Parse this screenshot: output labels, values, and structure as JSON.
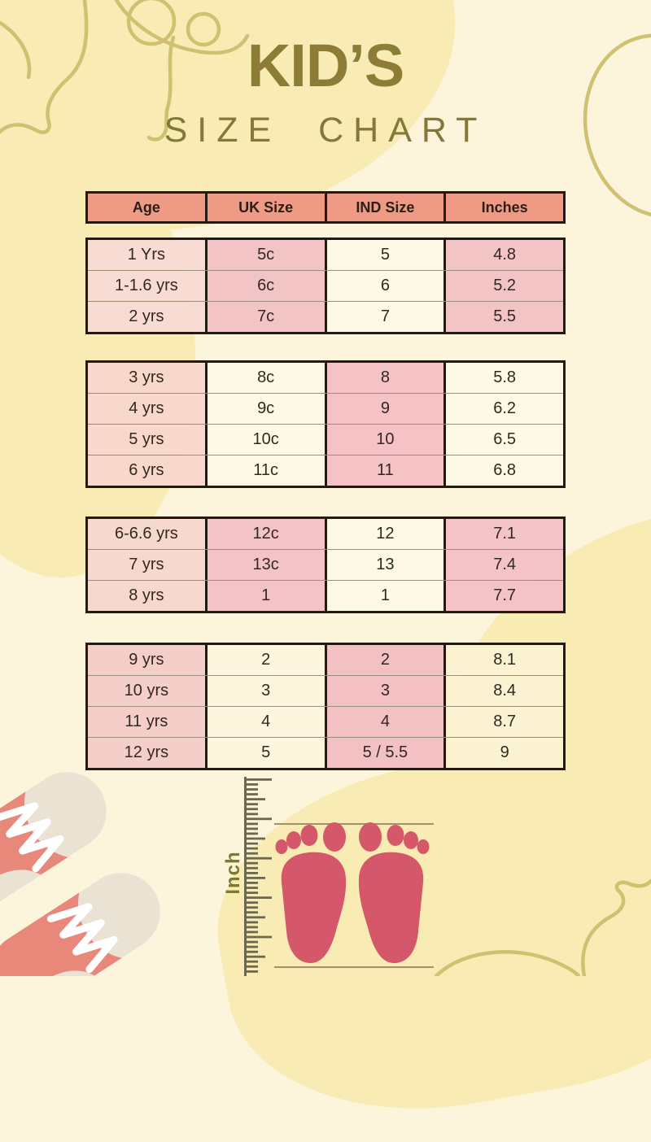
{
  "title": {
    "main": "KID’S",
    "sub": "SIZE CHART"
  },
  "table": {
    "headers": [
      "Age",
      "UK Size",
      "IND Size",
      "Inches"
    ],
    "groups": [
      {
        "rows": [
          [
            "1 Yrs",
            "5c",
            "5",
            "4.8"
          ],
          [
            "1-1.6 yrs",
            "6c",
            "6",
            "5.2"
          ],
          [
            "2 yrs",
            "7c",
            "7",
            "5.5"
          ]
        ]
      },
      {
        "rows": [
          [
            "3 yrs",
            "8c",
            "8",
            "5.8"
          ],
          [
            "4 yrs",
            "9c",
            "9",
            "6.2"
          ],
          [
            "5 yrs",
            "10c",
            "10",
            "6.5"
          ],
          [
            "6 yrs",
            "11c",
            "11",
            "6.8"
          ]
        ]
      },
      {
        "rows": [
          [
            "6-6.6 yrs",
            "12c",
            "12",
            "7.1"
          ],
          [
            "7 yrs",
            "13c",
            "13",
            "7.4"
          ],
          [
            "8 yrs",
            "1",
            "1",
            "7.7"
          ]
        ]
      },
      {
        "rows": [
          [
            "9 yrs",
            "2",
            "2",
            "8.1"
          ],
          [
            "10 yrs",
            "3",
            "3",
            "8.4"
          ],
          [
            "11 yrs",
            "4",
            "4",
            "8.7"
          ],
          [
            "12 yrs",
            "5",
            "5 / 5.5",
            "9"
          ]
        ]
      }
    ]
  },
  "ruler": {
    "label": "Inch"
  },
  "icons": {
    "ruler": "ruler-graphic",
    "footprints": "baby-footprints-graphic",
    "sneakers": "baby-sneakers-graphic"
  },
  "colors": {
    "background": "#fcf5dc",
    "blob_yellow": "#f8ecb4",
    "header_bg": "#ef9a85",
    "pink_cell": "#f3c4c6",
    "light_pink_cell": "#f8dcd4",
    "cream_cell": "#fdf9e6",
    "title_gold": "#8d7c35",
    "footprint_red": "#d4576a",
    "sneaker_salmon": "#e8887a",
    "sneaker_cream": "#eae3d3",
    "decor_gold": "#cfc072",
    "ruler_tick": "#6b684f"
  },
  "chart_data": {
    "type": "table",
    "title": "KID’S SIZE CHART",
    "columns": [
      "Age",
      "UK Size",
      "IND Size",
      "Inches"
    ],
    "rows": [
      [
        "1 Yrs",
        "5c",
        "5",
        "4.8"
      ],
      [
        "1-1.6 yrs",
        "6c",
        "6",
        "5.2"
      ],
      [
        "2 yrs",
        "7c",
        "7",
        "5.5"
      ],
      [
        "3 yrs",
        "8c",
        "8",
        "5.8"
      ],
      [
        "4 yrs",
        "9c",
        "9",
        "6.2"
      ],
      [
        "5 yrs",
        "10c",
        "10",
        "6.5"
      ],
      [
        "6 yrs",
        "11c",
        "11",
        "6.8"
      ],
      [
        "6-6.6 yrs",
        "12c",
        "12",
        "7.1"
      ],
      [
        "7 yrs",
        "13c",
        "13",
        "7.4"
      ],
      [
        "8 yrs",
        "1",
        "1",
        "7.7"
      ],
      [
        "9 yrs",
        "2",
        "2",
        "8.1"
      ],
      [
        "10 yrs",
        "3",
        "3",
        "8.4"
      ],
      [
        "11 yrs",
        "4",
        "4",
        "8.7"
      ],
      [
        "12 yrs",
        "5",
        "5 / 5.5",
        "9"
      ]
    ]
  }
}
